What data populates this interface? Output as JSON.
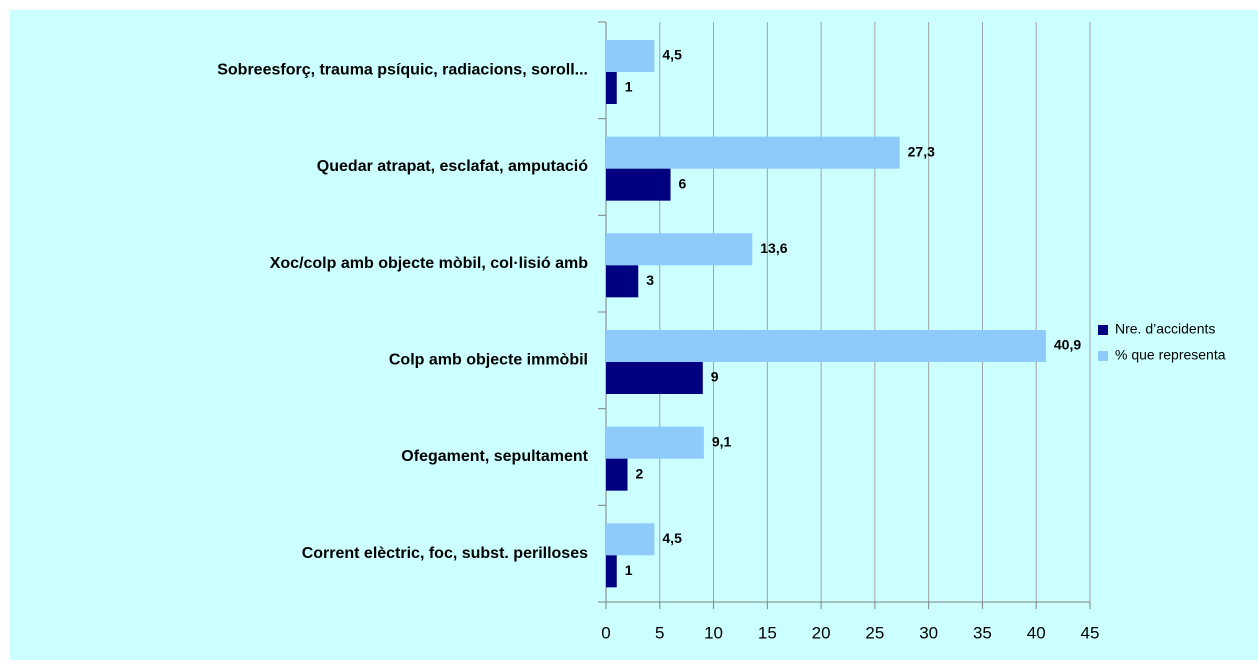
{
  "chart_data": {
    "type": "hbar",
    "categories": [
      "Sobreesforç, trauma psíquic, radiacions, soroll...",
      "Quedar atrapat, esclafat, amputació",
      "Xoc/colp amb objecte mòbil, col·lisió amb",
      "Colp amb objecte immòbil",
      "Ofegament, sepultament",
      "Corrent elèctric, foc, subst. perilloses"
    ],
    "series": [
      {
        "name": "Nre. d’accidents",
        "color": "#000080",
        "values": [
          1,
          6,
          3,
          9,
          2,
          1
        ]
      },
      {
        "name": "% que representa",
        "color": "#8ecbfb",
        "values": [
          4.5,
          27.3,
          13.6,
          40.9,
          9.1,
          4.5
        ],
        "value_labels": [
          "4,5",
          "27,3",
          "13,6",
          "40,9",
          "9,1",
          "4,5"
        ]
      }
    ],
    "xlim": [
      0,
      45
    ],
    "xticks": [
      0,
      5,
      10,
      15,
      20,
      25,
      30,
      35,
      40,
      45
    ],
    "grid": true
  }
}
